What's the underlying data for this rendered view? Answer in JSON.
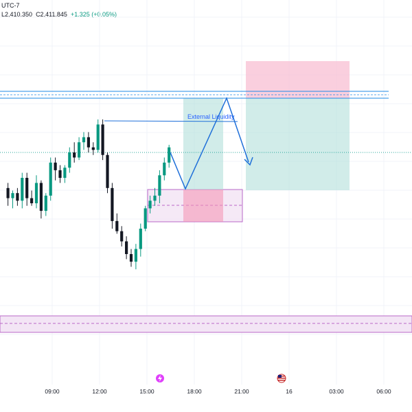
{
  "header": {
    "timezone": "UTC-7",
    "ohlc_low": "L2,410.350",
    "ohlc_close": "C2,411.845",
    "ohlc_change": "+1.325 (+0.05%)"
  },
  "icons": {
    "event_1": "lightning-event-icon",
    "event_2": "us-flag-event-icon"
  },
  "colors": {
    "bull": "#089981",
    "bear": "#131722",
    "zone_pink": "#e1bee7",
    "zone_border": "#ba68c8",
    "target": "#b2dfdb",
    "stop": "#f8bbd0",
    "level_line": "#1e88e5",
    "arrow": "#1e6fd9"
  },
  "chart_data": {
    "type": "candlestick",
    "title": "",
    "xlabel": "",
    "ylabel": "",
    "x_ticks": [
      {
        "label": "09:00",
        "t": 9
      },
      {
        "label": "12:00",
        "t": 12
      },
      {
        "label": "15:00",
        "t": 15
      },
      {
        "label": "18:00",
        "t": 18
      },
      {
        "label": "21:00",
        "t": 21
      },
      {
        "label": "16",
        "t": 24
      },
      {
        "label": "03:00",
        "t": 27
      },
      {
        "label": "06:00",
        "t": 30
      }
    ],
    "candles": [
      {
        "t": 6.2,
        "o": 2411.2,
        "h": 2411.6,
        "l": 2409.8,
        "c": 2410.4
      },
      {
        "t": 6.5,
        "o": 2410.4,
        "h": 2411.0,
        "l": 2409.6,
        "c": 2410.8
      },
      {
        "t": 6.8,
        "o": 2410.8,
        "h": 2411.2,
        "l": 2409.8,
        "c": 2410.2
      },
      {
        "t": 7.1,
        "o": 2410.2,
        "h": 2412.4,
        "l": 2409.6,
        "c": 2412.0
      },
      {
        "t": 7.4,
        "o": 2412.0,
        "h": 2412.4,
        "l": 2409.8,
        "c": 2410.4
      },
      {
        "t": 7.7,
        "o": 2410.4,
        "h": 2411.0,
        "l": 2409.8,
        "c": 2410.0
      },
      {
        "t": 8.0,
        "o": 2410.0,
        "h": 2412.2,
        "l": 2409.6,
        "c": 2411.6
      },
      {
        "t": 8.3,
        "o": 2411.6,
        "h": 2411.8,
        "l": 2408.8,
        "c": 2409.4
      },
      {
        "t": 8.6,
        "o": 2409.4,
        "h": 2410.8,
        "l": 2409.0,
        "c": 2410.6
      },
      {
        "t": 8.9,
        "o": 2410.6,
        "h": 2413.6,
        "l": 2410.2,
        "c": 2413.2
      },
      {
        "t": 9.2,
        "o": 2413.2,
        "h": 2413.6,
        "l": 2411.8,
        "c": 2412.6
      },
      {
        "t": 9.5,
        "o": 2412.6,
        "h": 2413.0,
        "l": 2411.6,
        "c": 2412.0
      },
      {
        "t": 9.8,
        "o": 2412.0,
        "h": 2413.0,
        "l": 2411.6,
        "c": 2412.8
      },
      {
        "t": 10.1,
        "o": 2412.8,
        "h": 2414.4,
        "l": 2412.4,
        "c": 2414.0
      },
      {
        "t": 10.4,
        "o": 2414.0,
        "h": 2414.8,
        "l": 2413.2,
        "c": 2413.6
      },
      {
        "t": 10.7,
        "o": 2413.6,
        "h": 2415.2,
        "l": 2413.4,
        "c": 2414.8
      },
      {
        "t": 11.0,
        "o": 2414.8,
        "h": 2415.6,
        "l": 2414.2,
        "c": 2415.2
      },
      {
        "t": 11.3,
        "o": 2415.2,
        "h": 2415.6,
        "l": 2414.0,
        "c": 2414.4
      },
      {
        "t": 11.6,
        "o": 2414.4,
        "h": 2414.8,
        "l": 2413.8,
        "c": 2414.2
      },
      {
        "t": 11.9,
        "o": 2414.2,
        "h": 2416.6,
        "l": 2414.0,
        "c": 2416.2
      },
      {
        "t": 12.2,
        "o": 2416.2,
        "h": 2416.6,
        "l": 2413.4,
        "c": 2413.8
      },
      {
        "t": 12.5,
        "o": 2413.8,
        "h": 2414.0,
        "l": 2410.8,
        "c": 2411.2
      },
      {
        "t": 12.8,
        "o": 2411.2,
        "h": 2411.6,
        "l": 2408.0,
        "c": 2408.6
      },
      {
        "t": 13.1,
        "o": 2408.6,
        "h": 2409.2,
        "l": 2407.6,
        "c": 2407.8
      },
      {
        "t": 13.4,
        "o": 2407.8,
        "h": 2408.2,
        "l": 2406.6,
        "c": 2407.0
      },
      {
        "t": 13.7,
        "o": 2407.0,
        "h": 2407.4,
        "l": 2405.6,
        "c": 2406.0
      },
      {
        "t": 14.0,
        "o": 2406.0,
        "h": 2406.4,
        "l": 2405.0,
        "c": 2405.4
      },
      {
        "t": 14.3,
        "o": 2405.4,
        "h": 2406.8,
        "l": 2404.8,
        "c": 2406.4
      },
      {
        "t": 14.6,
        "o": 2406.4,
        "h": 2408.4,
        "l": 2405.8,
        "c": 2408.0
      },
      {
        "t": 14.9,
        "o": 2408.0,
        "h": 2409.8,
        "l": 2407.8,
        "c": 2409.6
      },
      {
        "t": 15.2,
        "o": 2409.6,
        "h": 2410.6,
        "l": 2409.2,
        "c": 2410.2
      },
      {
        "t": 15.5,
        "o": 2410.2,
        "h": 2411.2,
        "l": 2409.8,
        "c": 2410.6
      },
      {
        "t": 15.8,
        "o": 2410.6,
        "h": 2412.6,
        "l": 2410.0,
        "c": 2412.2
      },
      {
        "t": 16.1,
        "o": 2412.2,
        "h": 2413.6,
        "l": 2411.8,
        "c": 2413.2
      },
      {
        "t": 16.4,
        "o": 2413.2,
        "h": 2414.6,
        "l": 2412.8,
        "c": 2414.4
      }
    ],
    "annotations": [
      {
        "type": "text",
        "text": "External Liquidity"
      }
    ]
  }
}
